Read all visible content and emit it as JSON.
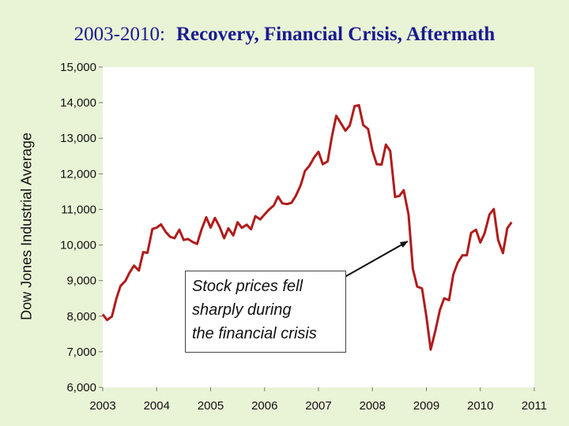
{
  "title": {
    "years": "2003-2010:",
    "main": "Recovery, Financial Crisis, Aftermath"
  },
  "annotation": {
    "lines": [
      "Stock prices fell",
      "sharply during",
      "the financial crisis"
    ]
  },
  "colors": {
    "background": "#e9f4d6",
    "plot_area": "#ffffff",
    "line": "#b01c1c",
    "title": "#1a1a90"
  },
  "chart_data": {
    "type": "line",
    "title": "2003-2010:  Recovery, Financial Crisis, Aftermath",
    "xlabel": "",
    "ylabel": "Dow Jones Industrial Average",
    "xlim": [
      2003,
      2011
    ],
    "ylim": [
      6000,
      15000
    ],
    "xticks": [
      2003,
      2004,
      2005,
      2006,
      2007,
      2008,
      2009,
      2010,
      2011
    ],
    "xtick_labels": [
      "2003",
      "2004",
      "2005",
      "2006",
      "2007",
      "2008",
      "2009",
      "2010",
      "2011"
    ],
    "yticks": [
      6000,
      7000,
      8000,
      9000,
      10000,
      11000,
      12000,
      13000,
      14000,
      15000
    ],
    "ytick_labels": [
      "6,000",
      "7,000",
      "8,000",
      "9,000",
      "10,000",
      "11,000",
      "12,000",
      "13,000",
      "14,000",
      "15,000"
    ],
    "grid": false,
    "annotation_arrow": {
      "from": [
        2006.55,
        8300
      ],
      "to": [
        2008.65,
        10100
      ]
    },
    "series": [
      {
        "name": "Dow Jones Industrial Average",
        "x": [
          2003.0,
          2003.08,
          2003.17,
          2003.25,
          2003.33,
          2003.42,
          2003.5,
          2003.58,
          2003.67,
          2003.75,
          2003.83,
          2003.92,
          2004.0,
          2004.08,
          2004.17,
          2004.25,
          2004.33,
          2004.42,
          2004.5,
          2004.58,
          2004.67,
          2004.75,
          2004.83,
          2004.92,
          2005.0,
          2005.08,
          2005.17,
          2005.25,
          2005.33,
          2005.42,
          2005.5,
          2005.58,
          2005.67,
          2005.75,
          2005.83,
          2005.92,
          2006.0,
          2006.08,
          2006.17,
          2006.25,
          2006.33,
          2006.42,
          2006.5,
          2006.58,
          2006.67,
          2006.75,
          2006.83,
          2006.92,
          2007.0,
          2007.08,
          2007.17,
          2007.25,
          2007.33,
          2007.42,
          2007.5,
          2007.58,
          2007.67,
          2007.75,
          2007.83,
          2007.92,
          2008.0,
          2008.08,
          2008.17,
          2008.25,
          2008.33,
          2008.42,
          2008.5,
          2008.58,
          2008.67,
          2008.75,
          2008.83,
          2008.92,
          2009.0,
          2009.08,
          2009.17,
          2009.25,
          2009.33,
          2009.42,
          2009.5,
          2009.58,
          2009.67,
          2009.75,
          2009.83,
          2009.92,
          2010.0,
          2010.08,
          2010.17,
          2010.25,
          2010.33,
          2010.42,
          2010.5,
          2010.58
        ],
        "values": [
          8050,
          7890,
          7990,
          8480,
          8850,
          8990,
          9230,
          9420,
          9280,
          9800,
          9780,
          10450,
          10490,
          10580,
          10360,
          10230,
          10190,
          10430,
          10140,
          10170,
          10080,
          10030,
          10430,
          10780,
          10490,
          10760,
          10500,
          10190,
          10470,
          10270,
          10640,
          10480,
          10570,
          10440,
          10810,
          10720,
          10860,
          10990,
          11110,
          11360,
          11170,
          11150,
          11190,
          11380,
          11680,
          12080,
          12220,
          12460,
          12620,
          12270,
          12350,
          13060,
          13630,
          13410,
          13210,
          13360,
          13900,
          13930,
          13370,
          13260,
          12650,
          12270,
          12260,
          12820,
          12640,
          11350,
          11380,
          11540,
          10850,
          9330,
          8830,
          8780,
          8000,
          7060,
          7610,
          8170,
          8500,
          8450,
          9170,
          9500,
          9710,
          9710,
          10340,
          10430,
          10070,
          10330,
          10860,
          11010,
          10140,
          9770,
          10470,
          10640
        ]
      }
    ]
  }
}
